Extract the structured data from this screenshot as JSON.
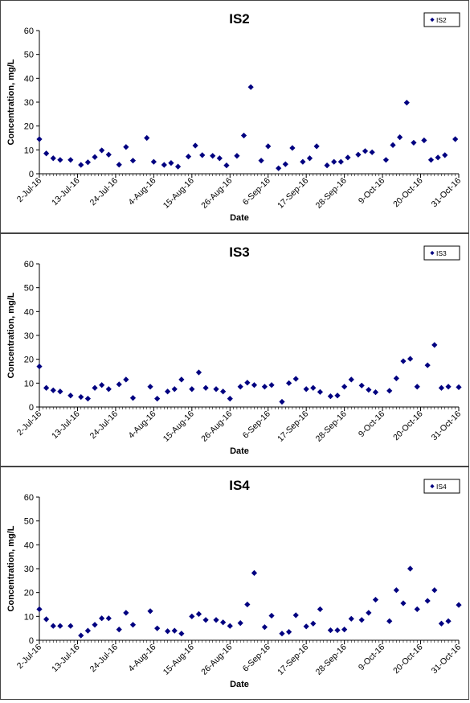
{
  "chart_data": [
    {
      "type": "scatter",
      "title": "IS2",
      "xlabel": "Date",
      "ylabel": "Concentration, mg/L",
      "ylim": [
        0,
        60
      ],
      "yticks": [
        "0",
        "10",
        "20",
        "30",
        "40",
        "50",
        "60"
      ],
      "xlim": [
        "2016-07-02",
        "2016-10-31"
      ],
      "xtick_labels": [
        "2-Jul-16",
        "13-Jul-16",
        "24-Jul-16",
        "4-Aug-16",
        "15-Aug-16",
        "26-Aug-16",
        "6-Sep-16",
        "17-Sep-16",
        "28-Sep-16",
        "9-Oct-16",
        "20-Oct-16",
        "31-Oct-16"
      ],
      "grid": false,
      "legend": "top-right",
      "series": [
        {
          "name": "IS2",
          "color": "#000080",
          "points": [
            {
              "x": "2016-07-02",
              "y": 14.5
            },
            {
              "x": "2016-07-04",
              "y": 8.5
            },
            {
              "x": "2016-07-06",
              "y": 6.5
            },
            {
              "x": "2016-07-08",
              "y": 5.8
            },
            {
              "x": "2016-07-11",
              "y": 5.8
            },
            {
              "x": "2016-07-14",
              "y": 3.7
            },
            {
              "x": "2016-07-16",
              "y": 4.8
            },
            {
              "x": "2016-07-18",
              "y": 7.0
            },
            {
              "x": "2016-07-20",
              "y": 9.8
            },
            {
              "x": "2016-07-22",
              "y": 8.0
            },
            {
              "x": "2016-07-25",
              "y": 3.8
            },
            {
              "x": "2016-07-27",
              "y": 11.2
            },
            {
              "x": "2016-07-29",
              "y": 5.5
            },
            {
              "x": "2016-08-02",
              "y": 15.0
            },
            {
              "x": "2016-08-04",
              "y": 5.0
            },
            {
              "x": "2016-08-07",
              "y": 3.7
            },
            {
              "x": "2016-08-09",
              "y": 4.5
            },
            {
              "x": "2016-08-11",
              "y": 3.0
            },
            {
              "x": "2016-08-14",
              "y": 7.2
            },
            {
              "x": "2016-08-16",
              "y": 11.8
            },
            {
              "x": "2016-08-18",
              "y": 7.8
            },
            {
              "x": "2016-08-21",
              "y": 7.5
            },
            {
              "x": "2016-08-23",
              "y": 6.5
            },
            {
              "x": "2016-08-25",
              "y": 3.5
            },
            {
              "x": "2016-08-28",
              "y": 7.5
            },
            {
              "x": "2016-08-30",
              "y": 16.0
            },
            {
              "x": "2016-09-01",
              "y": 36.3
            },
            {
              "x": "2016-09-04",
              "y": 5.5
            },
            {
              "x": "2016-09-06",
              "y": 11.5
            },
            {
              "x": "2016-09-09",
              "y": 2.3
            },
            {
              "x": "2016-09-11",
              "y": 4.0
            },
            {
              "x": "2016-09-13",
              "y": 10.8
            },
            {
              "x": "2016-09-16",
              "y": 5.0
            },
            {
              "x": "2016-09-18",
              "y": 6.5
            },
            {
              "x": "2016-09-20",
              "y": 11.5
            },
            {
              "x": "2016-09-23",
              "y": 3.5
            },
            {
              "x": "2016-09-25",
              "y": 5.0
            },
            {
              "x": "2016-09-27",
              "y": 5.0
            },
            {
              "x": "2016-09-29",
              "y": 6.8
            },
            {
              "x": "2016-10-02",
              "y": 8.0
            },
            {
              "x": "2016-10-04",
              "y": 9.5
            },
            {
              "x": "2016-10-06",
              "y": 9.0
            },
            {
              "x": "2016-10-10",
              "y": 5.8
            },
            {
              "x": "2016-10-12",
              "y": 12.0
            },
            {
              "x": "2016-10-14",
              "y": 15.3
            },
            {
              "x": "2016-10-16",
              "y": 29.8
            },
            {
              "x": "2016-10-18",
              "y": 13.0
            },
            {
              "x": "2016-10-21",
              "y": 14.0
            },
            {
              "x": "2016-10-23",
              "y": 5.8
            },
            {
              "x": "2016-10-25",
              "y": 6.8
            },
            {
              "x": "2016-10-27",
              "y": 7.8
            },
            {
              "x": "2016-10-30",
              "y": 14.5
            }
          ]
        }
      ]
    },
    {
      "type": "scatter",
      "title": "IS3",
      "xlabel": "Date",
      "ylabel": "Concentration, mg/L",
      "ylim": [
        0,
        60
      ],
      "yticks": [
        "0",
        "10",
        "20",
        "30",
        "40",
        "50",
        "60"
      ],
      "xlim": [
        "2016-07-02",
        "2016-10-31"
      ],
      "xtick_labels": [
        "2-Jul-16",
        "13-Jul-16",
        "24-Jul-16",
        "4-Aug-16",
        "15-Aug-16",
        "26-Aug-16",
        "6-Sep-16",
        "17-Sep-16",
        "28-Sep-16",
        "9-Oct-16",
        "20-Oct-16",
        "31-Oct-16"
      ],
      "grid": false,
      "legend": "top-right",
      "series": [
        {
          "name": "IS3",
          "color": "#000080",
          "points": [
            {
              "x": "2016-07-02",
              "y": 17.0
            },
            {
              "x": "2016-07-04",
              "y": 8.0
            },
            {
              "x": "2016-07-06",
              "y": 7.0
            },
            {
              "x": "2016-07-08",
              "y": 6.5
            },
            {
              "x": "2016-07-11",
              "y": 4.8
            },
            {
              "x": "2016-07-14",
              "y": 4.2
            },
            {
              "x": "2016-07-16",
              "y": 3.5
            },
            {
              "x": "2016-07-18",
              "y": 8.0
            },
            {
              "x": "2016-07-20",
              "y": 9.2
            },
            {
              "x": "2016-07-22",
              "y": 7.5
            },
            {
              "x": "2016-07-25",
              "y": 9.5
            },
            {
              "x": "2016-07-27",
              "y": 11.5
            },
            {
              "x": "2016-07-29",
              "y": 3.8
            },
            {
              "x": "2016-08-03",
              "y": 8.5
            },
            {
              "x": "2016-08-05",
              "y": 3.5
            },
            {
              "x": "2016-08-08",
              "y": 6.5
            },
            {
              "x": "2016-08-10",
              "y": 7.5
            },
            {
              "x": "2016-08-12",
              "y": 11.5
            },
            {
              "x": "2016-08-15",
              "y": 7.5
            },
            {
              "x": "2016-08-17",
              "y": 14.5
            },
            {
              "x": "2016-08-19",
              "y": 8.0
            },
            {
              "x": "2016-08-22",
              "y": 7.5
            },
            {
              "x": "2016-08-24",
              "y": 6.5
            },
            {
              "x": "2016-08-26",
              "y": 3.5
            },
            {
              "x": "2016-08-29",
              "y": 8.5
            },
            {
              "x": "2016-08-31",
              "y": 10.2
            },
            {
              "x": "2016-09-02",
              "y": 9.2
            },
            {
              "x": "2016-09-05",
              "y": 8.5
            },
            {
              "x": "2016-09-07",
              "y": 9.2
            },
            {
              "x": "2016-09-10",
              "y": 2.2
            },
            {
              "x": "2016-09-12",
              "y": 10.0
            },
            {
              "x": "2016-09-14",
              "y": 11.8
            },
            {
              "x": "2016-09-17",
              "y": 7.5
            },
            {
              "x": "2016-09-19",
              "y": 8.0
            },
            {
              "x": "2016-09-21",
              "y": 6.3
            },
            {
              "x": "2016-09-24",
              "y": 4.5
            },
            {
              "x": "2016-09-26",
              "y": 4.8
            },
            {
              "x": "2016-09-28",
              "y": 8.5
            },
            {
              "x": "2016-09-30",
              "y": 11.5
            },
            {
              "x": "2016-10-03",
              "y": 9.0
            },
            {
              "x": "2016-10-05",
              "y": 7.2
            },
            {
              "x": "2016-10-07",
              "y": 6.2
            },
            {
              "x": "2016-10-11",
              "y": 6.8
            },
            {
              "x": "2016-10-13",
              "y": 12.0
            },
            {
              "x": "2016-10-15",
              "y": 19.2
            },
            {
              "x": "2016-10-17",
              "y": 20.2
            },
            {
              "x": "2016-10-19",
              "y": 8.5
            },
            {
              "x": "2016-10-22",
              "y": 17.5
            },
            {
              "x": "2016-10-24",
              "y": 26.0
            },
            {
              "x": "2016-10-26",
              "y": 8.0
            },
            {
              "x": "2016-10-28",
              "y": 8.5
            },
            {
              "x": "2016-10-31",
              "y": 8.3
            }
          ]
        }
      ]
    },
    {
      "type": "scatter",
      "title": "IS4",
      "xlabel": "Date",
      "ylabel": "Concentration, mg/L",
      "ylim": [
        0,
        60
      ],
      "yticks": [
        "0",
        "10",
        "20",
        "30",
        "40",
        "50",
        "60"
      ],
      "xlim": [
        "2016-07-02",
        "2016-10-31"
      ],
      "xtick_labels": [
        "2-Jul-16",
        "13-Jul-16",
        "24-Jul-16",
        "4-Aug-16",
        "15-Aug-16",
        "26-Aug-16",
        "6-Sep-16",
        "17-Sep-16",
        "28-Sep-16",
        "9-Oct-16",
        "20-Oct-16",
        "31-Oct-16"
      ],
      "grid": false,
      "legend": "top-right",
      "series": [
        {
          "name": "IS4",
          "color": "#000080",
          "points": [
            {
              "x": "2016-07-02",
              "y": 13.0
            },
            {
              "x": "2016-07-04",
              "y": 8.8
            },
            {
              "x": "2016-07-06",
              "y": 6.0
            },
            {
              "x": "2016-07-08",
              "y": 6.0
            },
            {
              "x": "2016-07-11",
              "y": 6.0
            },
            {
              "x": "2016-07-14",
              "y": 2.0
            },
            {
              "x": "2016-07-16",
              "y": 4.0
            },
            {
              "x": "2016-07-18",
              "y": 6.5
            },
            {
              "x": "2016-07-20",
              "y": 9.2
            },
            {
              "x": "2016-07-22",
              "y": 9.2
            },
            {
              "x": "2016-07-25",
              "y": 4.5
            },
            {
              "x": "2016-07-27",
              "y": 11.5
            },
            {
              "x": "2016-07-29",
              "y": 6.5
            },
            {
              "x": "2016-08-03",
              "y": 12.2
            },
            {
              "x": "2016-08-05",
              "y": 5.0
            },
            {
              "x": "2016-08-08",
              "y": 3.8
            },
            {
              "x": "2016-08-10",
              "y": 4.0
            },
            {
              "x": "2016-08-12",
              "y": 2.8
            },
            {
              "x": "2016-08-15",
              "y": 10.0
            },
            {
              "x": "2016-08-17",
              "y": 11.0
            },
            {
              "x": "2016-08-19",
              "y": 8.5
            },
            {
              "x": "2016-08-22",
              "y": 8.5
            },
            {
              "x": "2016-08-24",
              "y": 7.5
            },
            {
              "x": "2016-08-26",
              "y": 6.0
            },
            {
              "x": "2016-08-29",
              "y": 7.2
            },
            {
              "x": "2016-08-31",
              "y": 15.0
            },
            {
              "x": "2016-09-02",
              "y": 28.2
            },
            {
              "x": "2016-09-05",
              "y": 5.5
            },
            {
              "x": "2016-09-07",
              "y": 10.3
            },
            {
              "x": "2016-09-10",
              "y": 2.8
            },
            {
              "x": "2016-09-12",
              "y": 3.5
            },
            {
              "x": "2016-09-14",
              "y": 10.5
            },
            {
              "x": "2016-09-17",
              "y": 5.8
            },
            {
              "x": "2016-09-19",
              "y": 7.0
            },
            {
              "x": "2016-09-21",
              "y": 13.0
            },
            {
              "x": "2016-09-24",
              "y": 4.2
            },
            {
              "x": "2016-09-26",
              "y": 4.2
            },
            {
              "x": "2016-09-28",
              "y": 4.5
            },
            {
              "x": "2016-09-30",
              "y": 9.0
            },
            {
              "x": "2016-10-03",
              "y": 8.5
            },
            {
              "x": "2016-10-05",
              "y": 11.5
            },
            {
              "x": "2016-10-07",
              "y": 17.0
            },
            {
              "x": "2016-10-11",
              "y": 8.0
            },
            {
              "x": "2016-10-13",
              "y": 21.0
            },
            {
              "x": "2016-10-15",
              "y": 15.5
            },
            {
              "x": "2016-10-17",
              "y": 30.0
            },
            {
              "x": "2016-10-19",
              "y": 13.0
            },
            {
              "x": "2016-10-22",
              "y": 16.5
            },
            {
              "x": "2016-10-24",
              "y": 21.0
            },
            {
              "x": "2016-10-26",
              "y": 7.0
            },
            {
              "x": "2016-10-28",
              "y": 8.0
            },
            {
              "x": "2016-10-31",
              "y": 14.8
            }
          ]
        }
      ]
    }
  ]
}
